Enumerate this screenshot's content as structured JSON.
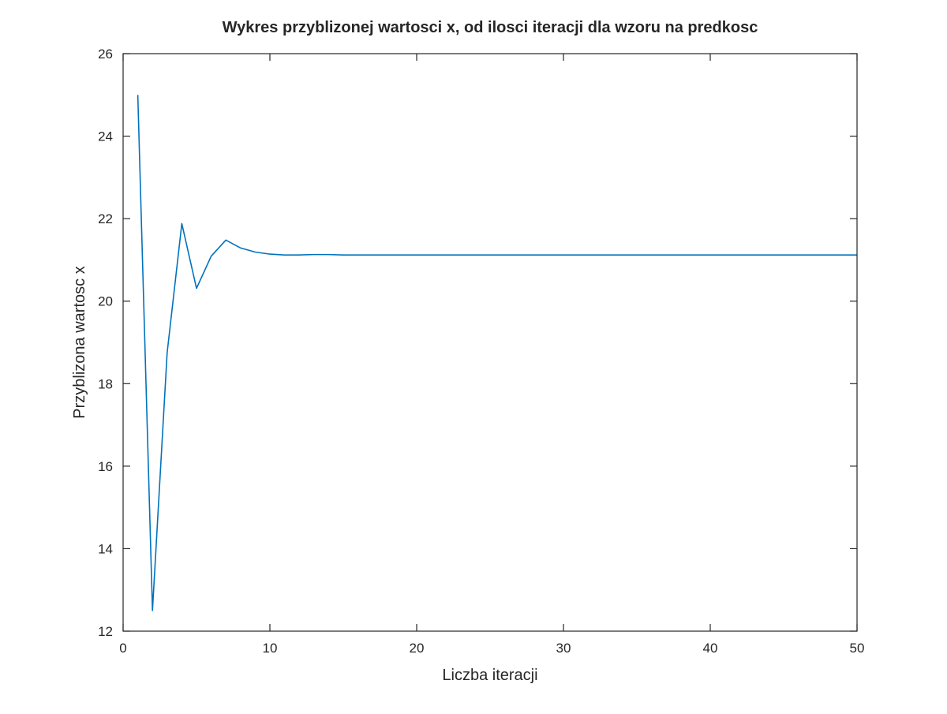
{
  "chart_data": {
    "type": "line",
    "title": "Wykres przyblizonej wartosci x, od ilosci iteracji dla wzoru na predkosc",
    "xlabel": "Liczba iteracji",
    "ylabel": "Przyblizona wartosc x",
    "xlim": [
      0,
      50
    ],
    "ylim": [
      12,
      26
    ],
    "xticks": [
      0,
      10,
      20,
      30,
      40,
      50
    ],
    "yticks": [
      12,
      14,
      16,
      18,
      20,
      22,
      24,
      26
    ],
    "grid": false,
    "series": [
      {
        "color": "#0072bd",
        "x": [
          1,
          2,
          3,
          4,
          5,
          6,
          7,
          8,
          9,
          10,
          11,
          12,
          13,
          14,
          15,
          16,
          17,
          18,
          19,
          20,
          21,
          22,
          23,
          24,
          25,
          26,
          27,
          28,
          29,
          30,
          31,
          32,
          33,
          34,
          35,
          36,
          37,
          38,
          39,
          40,
          41,
          42,
          43,
          44,
          45,
          46,
          47,
          48,
          49,
          50
        ],
        "values": [
          25.0,
          12.5,
          18.75,
          21.88,
          20.31,
          21.09,
          21.48,
          21.29,
          21.19,
          21.14,
          21.12,
          21.12,
          21.13,
          21.13,
          21.12,
          21.12,
          21.12,
          21.12,
          21.12,
          21.12,
          21.12,
          21.12,
          21.12,
          21.12,
          21.12,
          21.12,
          21.12,
          21.12,
          21.12,
          21.12,
          21.12,
          21.12,
          21.12,
          21.12,
          21.12,
          21.12,
          21.12,
          21.12,
          21.12,
          21.12,
          21.12,
          21.12,
          21.12,
          21.12,
          21.12,
          21.12,
          21.12,
          21.12,
          21.12,
          21.12
        ]
      }
    ]
  }
}
